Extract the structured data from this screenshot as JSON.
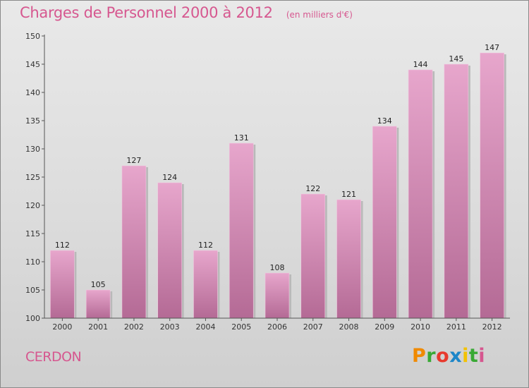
{
  "chart_data": {
    "type": "bar",
    "title": "Charges de Personnel 2000 à 2012",
    "subtitle": "(en milliers d'€)",
    "categories": [
      "2000",
      "2001",
      "2002",
      "2003",
      "2004",
      "2005",
      "2006",
      "2007",
      "2008",
      "2009",
      "2010",
      "2011",
      "2012"
    ],
    "values": [
      112,
      105,
      127,
      124,
      112,
      131,
      108,
      122,
      121,
      134,
      144,
      145,
      147
    ],
    "ylim": [
      100,
      150
    ],
    "yticks": [
      100,
      105,
      110,
      115,
      120,
      125,
      130,
      135,
      140,
      145,
      150
    ],
    "grid": false,
    "bar_color": "#d88bb8"
  },
  "place_name": "CERDON",
  "brand": {
    "text": "Proxiti",
    "letter_colors": [
      "#f08a00",
      "#39a935",
      "#e8392d",
      "#1d86c8",
      "#f2c200",
      "#39a935",
      "#d6578f"
    ]
  }
}
